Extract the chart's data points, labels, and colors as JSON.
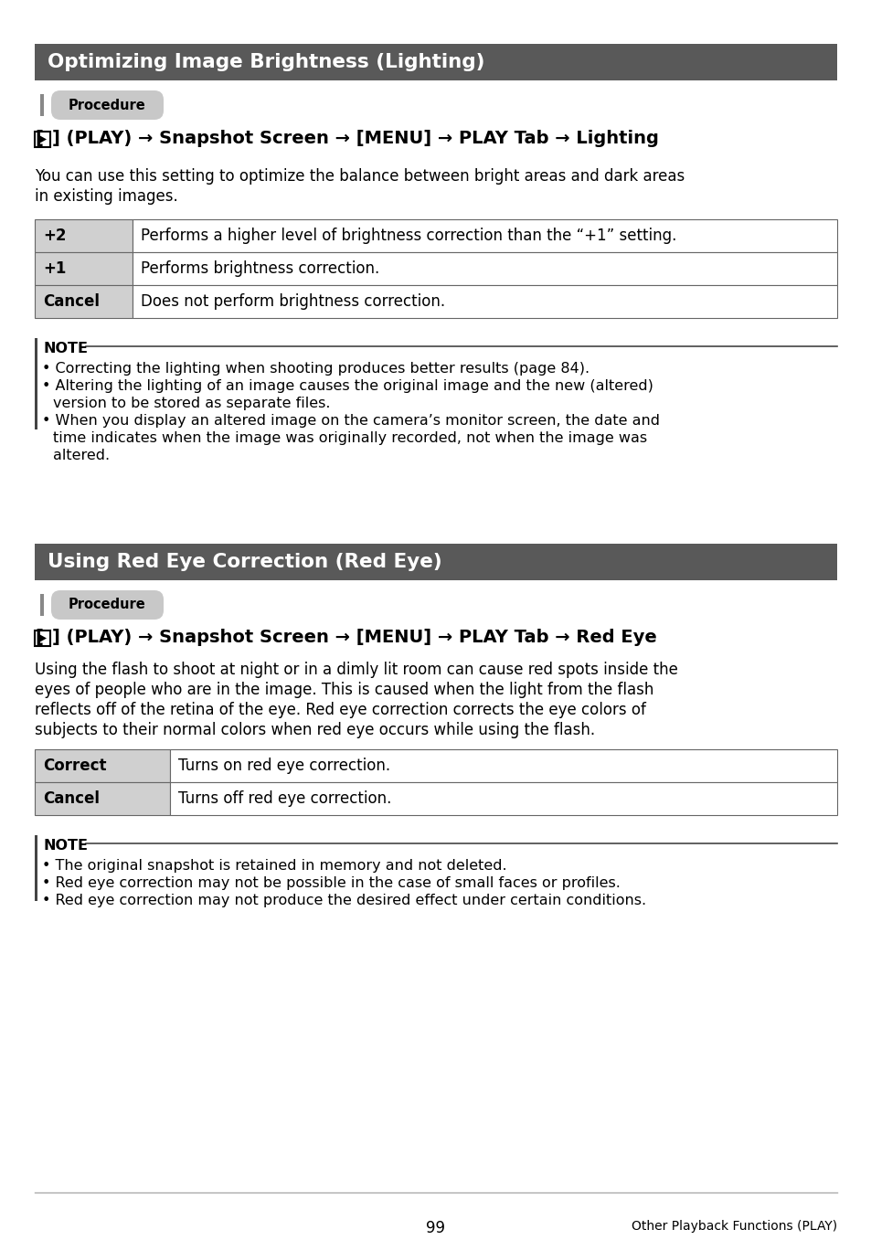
{
  "page_bg": "#ffffff",
  "section1_title": "Optimizing Image Brightness (Lighting)",
  "section2_title": "Using Red Eye Correction (Red Eye)",
  "procedure_label": "Procedure",
  "header_bg": "#595959",
  "header_text_color": "#ffffff",
  "procedure_bg": "#c8c8c8",
  "procedure_text_color": "#000000",
  "nav1c": "(PLAY) → Snapshot Screen → [MENU] → PLAY Tab → Lighting",
  "nav2c": "(PLAY) → Snapshot Screen → [MENU] → PLAY Tab → Red Eye",
  "body1": "You can use this setting to optimize the balance between bright areas and dark areas\nin existing images.",
  "table1": [
    [
      "+2",
      "Performs a higher level of brightness correction than the “+1” setting."
    ],
    [
      "+1",
      "Performs brightness correction."
    ],
    [
      "Cancel",
      "Does not perform brightness correction."
    ]
  ],
  "note1_bullets": [
    "Correcting the lighting when shooting produces better results (page 84).",
    "Altering the lighting of an image causes the original image and the new (altered)\n    version to be stored as separate files.",
    "When you display an altered image on the camera’s monitor screen, the date and\n    time indicates when the image was originally recorded, not when the image was\n    altered."
  ],
  "body2": "Using the flash to shoot at night or in a dimly lit room can cause red spots inside the\neyes of people who are in the image. This is caused when the light from the flash\nreflects off of the retina of the eye. Red eye correction corrects the eye colors of\nsubjects to their normal colors when red eye occurs while using the flash.",
  "table2": [
    [
      "Correct",
      "Turns on red eye correction."
    ],
    [
      "Cancel",
      "Turns off red eye correction."
    ]
  ],
  "note2_bullets": [
    "The original snapshot is retained in memory and not deleted.",
    "Red eye correction may not be possible in the case of small faces or profiles.",
    "Red eye correction may not produce the desired effect under certain conditions."
  ],
  "footer_page": "99",
  "footer_right": "Other Playback Functions (PLAY)",
  "table_col1_bg": "#d0d0d0",
  "table_border_color": "#666666",
  "note_bar_color": "#444444",
  "body_text_color": "#000000"
}
